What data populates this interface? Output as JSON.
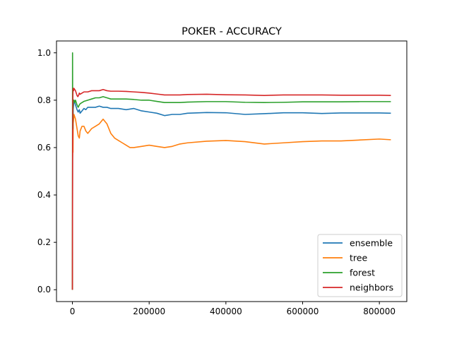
{
  "chart_data": {
    "type": "line",
    "title": "POKER - ACCURACY",
    "xlabel": "",
    "ylabel": "",
    "xlim": [
      -41500,
      871500
    ],
    "ylim": [
      -0.05,
      1.05
    ],
    "xticks": [
      0,
      200000,
      400000,
      600000,
      800000
    ],
    "xtick_labels": [
      "0",
      "200000",
      "400000",
      "600000",
      "800000"
    ],
    "yticks": [
      0.0,
      0.2,
      0.4,
      0.6,
      0.8,
      1.0
    ],
    "ytick_labels": [
      "0.0",
      "0.2",
      "0.4",
      "0.6",
      "0.8",
      "1.0"
    ],
    "grid": false,
    "legend_position": "lower-right",
    "series": [
      {
        "name": "ensemble",
        "color": "#1f77b4",
        "x": [
          0,
          500,
          1000,
          1500,
          2000,
          3000,
          4000,
          6000,
          8000,
          10000,
          12000,
          15000,
          18000,
          20000,
          25000,
          30000,
          35000,
          40000,
          50000,
          60000,
          70000,
          80000,
          90000,
          100000,
          120000,
          140000,
          160000,
          180000,
          200000,
          220000,
          240000,
          260000,
          280000,
          300000,
          350000,
          400000,
          450000,
          500000,
          550000,
          600000,
          650000,
          700000,
          750000,
          800000,
          830000
        ],
        "y": [
          0.0,
          0.6,
          0.72,
          0.68,
          0.76,
          0.78,
          0.8,
          0.79,
          0.78,
          0.77,
          0.76,
          0.75,
          0.76,
          0.745,
          0.755,
          0.765,
          0.76,
          0.77,
          0.77,
          0.77,
          0.775,
          0.77,
          0.77,
          0.765,
          0.765,
          0.76,
          0.765,
          0.755,
          0.75,
          0.745,
          0.735,
          0.74,
          0.74,
          0.745,
          0.748,
          0.747,
          0.74,
          0.743,
          0.747,
          0.747,
          0.744,
          0.746,
          0.746,
          0.746,
          0.745
        ]
      },
      {
        "name": "tree",
        "color": "#ff7f0e",
        "x": [
          0,
          500,
          1000,
          1500,
          2000,
          3000,
          4000,
          6000,
          8000,
          10000,
          12000,
          15000,
          18000,
          20000,
          25000,
          30000,
          35000,
          40000,
          50000,
          60000,
          70000,
          75000,
          80000,
          90000,
          100000,
          110000,
          120000,
          130000,
          140000,
          150000,
          160000,
          180000,
          200000,
          220000,
          240000,
          260000,
          280000,
          300000,
          350000,
          400000,
          450000,
          500000,
          550000,
          600000,
          650000,
          700000,
          750000,
          800000,
          830000
        ],
        "y": [
          0.0,
          0.55,
          0.6,
          0.58,
          0.7,
          0.72,
          0.74,
          0.73,
          0.72,
          0.7,
          0.68,
          0.65,
          0.64,
          0.67,
          0.69,
          0.69,
          0.67,
          0.66,
          0.68,
          0.69,
          0.7,
          0.71,
          0.72,
          0.7,
          0.66,
          0.64,
          0.63,
          0.62,
          0.61,
          0.6,
          0.6,
          0.605,
          0.61,
          0.605,
          0.6,
          0.605,
          0.615,
          0.62,
          0.627,
          0.63,
          0.625,
          0.615,
          0.62,
          0.625,
          0.628,
          0.628,
          0.632,
          0.636,
          0.633
        ]
      },
      {
        "name": "forest",
        "color": "#2ca02c",
        "x": [
          0,
          300,
          600,
          1000,
          1500,
          2000,
          3000,
          4000,
          6000,
          8000,
          10000,
          12000,
          15000,
          18000,
          20000,
          25000,
          30000,
          40000,
          50000,
          60000,
          70000,
          80000,
          90000,
          100000,
          120000,
          140000,
          160000,
          180000,
          200000,
          220000,
          240000,
          260000,
          280000,
          300000,
          350000,
          400000,
          450000,
          500000,
          550000,
          600000,
          650000,
          700000,
          750000,
          800000,
          830000
        ],
        "y": [
          0.0,
          1.0,
          0.8,
          0.68,
          0.76,
          0.79,
          0.8,
          0.8,
          0.79,
          0.8,
          0.79,
          0.78,
          0.77,
          0.78,
          0.785,
          0.79,
          0.795,
          0.8,
          0.805,
          0.81,
          0.81,
          0.815,
          0.81,
          0.805,
          0.805,
          0.805,
          0.803,
          0.8,
          0.8,
          0.795,
          0.79,
          0.79,
          0.79,
          0.792,
          0.794,
          0.794,
          0.791,
          0.79,
          0.791,
          0.793,
          0.793,
          0.793,
          0.794,
          0.794,
          0.794
        ]
      },
      {
        "name": "neighbors",
        "color": "#d62728",
        "x": [
          0,
          500,
          1000,
          1500,
          2000,
          3000,
          4000,
          6000,
          8000,
          10000,
          12000,
          14000,
          16000,
          18000,
          20000,
          25000,
          30000,
          40000,
          50000,
          60000,
          70000,
          80000,
          90000,
          100000,
          120000,
          140000,
          160000,
          180000,
          200000,
          220000,
          240000,
          260000,
          280000,
          300000,
          350000,
          400000,
          450000,
          500000,
          550000,
          600000,
          650000,
          700000,
          750000,
          800000,
          830000
        ],
        "y": [
          0.0,
          0.65,
          0.8,
          0.84,
          0.85,
          0.84,
          0.85,
          0.845,
          0.84,
          0.83,
          0.82,
          0.815,
          0.82,
          0.83,
          0.825,
          0.83,
          0.835,
          0.835,
          0.84,
          0.84,
          0.84,
          0.845,
          0.84,
          0.838,
          0.838,
          0.837,
          0.835,
          0.833,
          0.83,
          0.826,
          0.822,
          0.822,
          0.822,
          0.824,
          0.825,
          0.823,
          0.822,
          0.82,
          0.822,
          0.822,
          0.822,
          0.821,
          0.821,
          0.821,
          0.82
        ]
      }
    ]
  }
}
